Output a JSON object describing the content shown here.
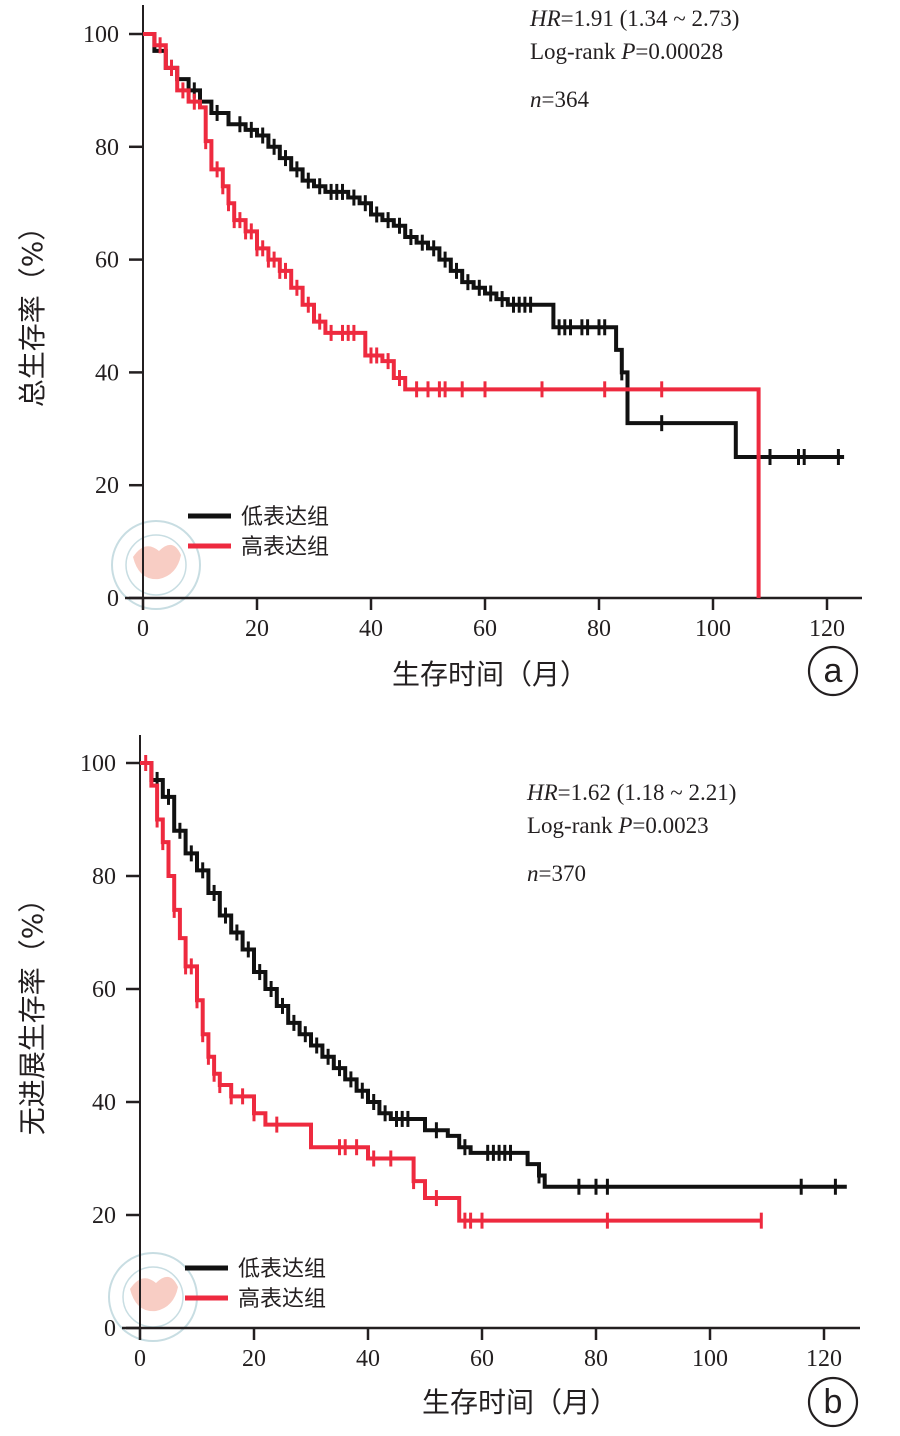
{
  "colors": {
    "low": "#111111",
    "high": "#ee2a3f",
    "axis": "#231f20",
    "watermark": "#f4a594"
  },
  "chart_data": [
    {
      "type": "line",
      "panel": "a",
      "xlabel": "生存时间（月）",
      "ylabel": "总生存率（%）",
      "xlim": [
        0,
        122
      ],
      "ylim": [
        0,
        100
      ],
      "xticks": [
        "0",
        "20",
        "40",
        "60",
        "80",
        "100",
        "120"
      ],
      "yticks": [
        "0",
        "20",
        "40",
        "60",
        "80",
        "100"
      ],
      "annotations": {
        "hr_label": "HR",
        "hr_value": "=1.91 (1.34 ~ 2.73)",
        "logrank_label": "Log-rank ",
        "p_label": "P",
        "p_value": "=0.00028",
        "n_label": "n",
        "n_value": "=364"
      },
      "legend": [
        "低表达组",
        "高表达组"
      ],
      "legend_position": "bottom-left",
      "series": [
        {
          "name": "低表达组",
          "step": true,
          "x": [
            0,
            2,
            4,
            6,
            8,
            10,
            12,
            15,
            18,
            20,
            22,
            24,
            26,
            28,
            30,
            32,
            36,
            38,
            40,
            42,
            44,
            46,
            48,
            50,
            52,
            54,
            56,
            58,
            60,
            62,
            64,
            70,
            72,
            82,
            83,
            84,
            85,
            104,
            123
          ],
          "y": [
            100,
            97,
            94,
            92,
            90,
            88,
            86,
            84,
            83,
            82,
            80,
            78,
            76,
            74,
            73,
            72,
            71,
            70,
            68,
            67,
            66,
            64,
            63,
            62,
            60,
            58,
            56,
            55,
            54,
            53,
            52,
            52,
            48,
            48,
            44,
            40,
            31,
            25,
            25
          ],
          "censor_x": [
            5,
            9,
            13,
            17,
            19,
            21,
            23,
            25,
            27,
            29,
            31,
            33,
            34,
            35,
            37,
            39,
            41,
            43,
            45,
            47,
            49,
            51,
            53,
            55,
            57,
            59,
            61,
            63,
            65,
            66,
            67,
            68,
            73,
            74,
            75,
            77,
            78,
            80,
            81,
            84,
            91,
            110,
            115,
            116,
            122
          ]
        },
        {
          "name": "高表达组",
          "step": true,
          "x": [
            0,
            2,
            4,
            6,
            8,
            10,
            11,
            12,
            14,
            15,
            16,
            18,
            20,
            22,
            24,
            26,
            28,
            30,
            32,
            38,
            39,
            42,
            44,
            46,
            108,
            108
          ],
          "y": [
            100,
            98,
            94,
            90,
            88,
            87,
            81,
            76,
            73,
            70,
            67,
            65,
            62,
            60,
            58,
            55,
            52,
            49,
            47,
            47,
            43,
            42,
            39,
            37,
            37,
            0
          ],
          "censor_x": [
            3,
            5,
            7,
            9,
            11,
            13,
            14,
            15,
            16,
            17,
            18,
            19,
            20,
            21,
            22,
            23,
            24,
            25,
            27,
            29,
            31,
            33,
            35,
            36,
            37,
            40,
            41,
            43,
            45,
            48,
            50,
            52,
            53,
            56,
            60,
            70,
            81,
            91
          ]
        }
      ]
    },
    {
      "type": "line",
      "panel": "b",
      "xlabel": "生存时间（月）",
      "ylabel": "无进展生存率（%）",
      "xlim": [
        0,
        126
      ],
      "ylim": [
        0,
        100
      ],
      "xticks": [
        "0",
        "20",
        "40",
        "60",
        "80",
        "100",
        "120"
      ],
      "yticks": [
        "0",
        "20",
        "40",
        "60",
        "80",
        "100"
      ],
      "annotations": {
        "hr_label": "HR",
        "hr_value": "=1.62 (1.18 ~ 2.21)",
        "logrank_label": "Log-rank ",
        "p_label": "P",
        "p_value": "=0.0023",
        "n_label": "n",
        "n_value": "=370"
      },
      "legend": [
        "低表达组",
        "高表达组"
      ],
      "legend_position": "bottom-left",
      "series": [
        {
          "name": "低表达组",
          "step": true,
          "x": [
            0,
            2,
            4,
            6,
            8,
            10,
            12,
            14,
            16,
            18,
            20,
            22,
            24,
            26,
            28,
            30,
            32,
            34,
            36,
            38,
            40,
            42,
            44,
            48,
            50,
            54,
            56,
            58,
            66,
            68,
            70,
            71,
            124
          ],
          "y": [
            100,
            97,
            94,
            88,
            84,
            81,
            77,
            73,
            70,
            67,
            63,
            60,
            57,
            54,
            52,
            50,
            48,
            46,
            44,
            42,
            40,
            38,
            37,
            37,
            35,
            34,
            32,
            31,
            31,
            29,
            27,
            25,
            25
          ],
          "censor_x": [
            3,
            5,
            7,
            9,
            11,
            13,
            15,
            17,
            19,
            21,
            23,
            25,
            27,
            29,
            31,
            33,
            35,
            37,
            39,
            41,
            43,
            45,
            46,
            47,
            52,
            57,
            61,
            62,
            63,
            64,
            65,
            70,
            77,
            80,
            82,
            116,
            122
          ]
        },
        {
          "name": "高表达组",
          "step": true,
          "x": [
            0,
            2,
            3,
            4,
            5,
            6,
            7,
            8,
            10,
            11,
            12,
            13,
            14,
            16,
            20,
            22,
            30,
            30,
            40,
            40,
            48,
            48,
            50,
            56,
            56,
            109
          ],
          "y": [
            100,
            96,
            90,
            86,
            80,
            74,
            69,
            64,
            58,
            52,
            48,
            45,
            43,
            41,
            38,
            36,
            36,
            32,
            32,
            30,
            30,
            26,
            23,
            23,
            19,
            19
          ],
          "censor_x": [
            1,
            3,
            4,
            6,
            8,
            9,
            10,
            11,
            12,
            13,
            14,
            16,
            18,
            20,
            24,
            35,
            36,
            38,
            41,
            44,
            48,
            52,
            57,
            58,
            60,
            82,
            109
          ]
        }
      ]
    }
  ]
}
